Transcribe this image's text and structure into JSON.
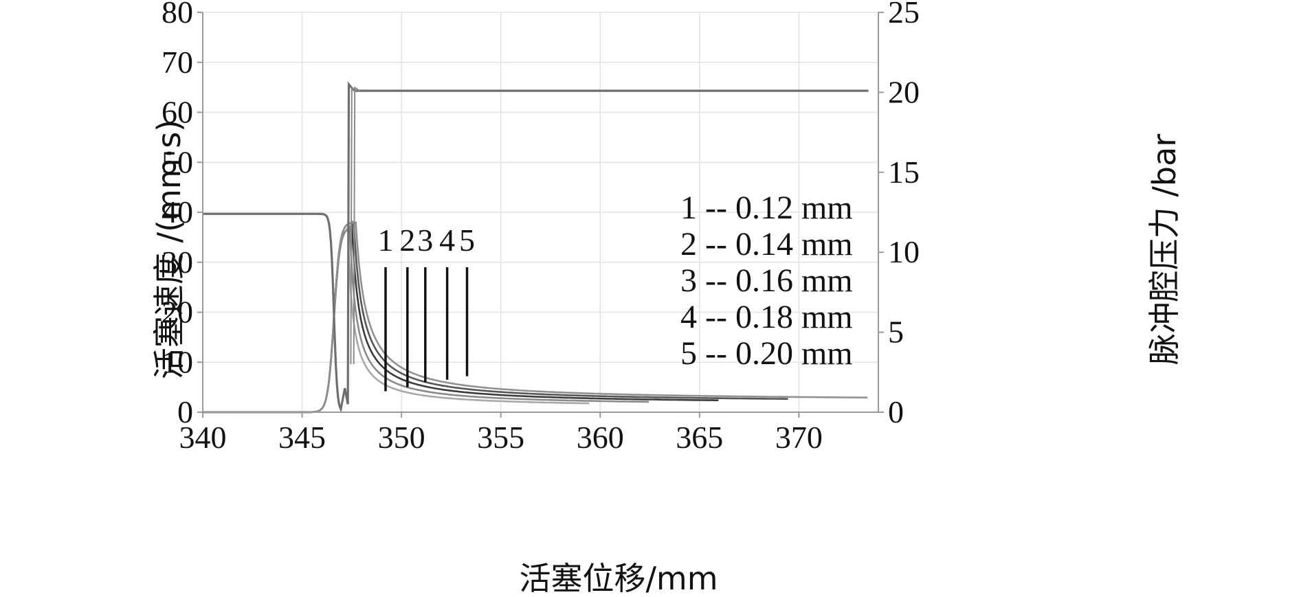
{
  "chart_data": {
    "type": "line",
    "xlabel": "活塞位移/mm",
    "ylabel": "活塞速度 /(mm·s)",
    "y2label": "脉冲腔压力 /bar",
    "xlim": [
      340,
      374
    ],
    "ylim": [
      0,
      80
    ],
    "y2lim": [
      0,
      25
    ],
    "x_ticks": [
      "340",
      "345",
      "350",
      "355",
      "360",
      "365",
      "370"
    ],
    "y_ticks": [
      "0",
      "10",
      "20",
      "30",
      "40",
      "50",
      "60",
      "70",
      "80"
    ],
    "y2_ticks": [
      "0",
      "5",
      "10",
      "15",
      "20",
      "25"
    ],
    "grid": true,
    "legend": [
      {
        "id": "1",
        "text": "1 -- 0.12 mm"
      },
      {
        "id": "2",
        "text": "2 -- 0.14 mm"
      },
      {
        "id": "3",
        "text": "3 -- 0.16 mm"
      },
      {
        "id": "4",
        "text": "4 -- 0.18 mm"
      },
      {
        "id": "5",
        "text": "5 -- 0.20 mm"
      }
    ],
    "legend_placement": "right",
    "markers": [
      {
        "label": "1",
        "x": 349.2,
        "y_top": 29,
        "y_bottom": 4.2
      },
      {
        "label": "2",
        "x": 350.3,
        "y_top": 29,
        "y_bottom": 5.0
      },
      {
        "label": "3",
        "x": 351.2,
        "y_top": 29,
        "y_bottom": 6.0
      },
      {
        "label": "4",
        "x": 352.3,
        "y_top": 29,
        "y_bottom": 6.5
      },
      {
        "label": "5",
        "x": 353.3,
        "y_top": 29,
        "y_bottom": 7.2
      }
    ],
    "velocity_series": [
      {
        "label": "1",
        "peak_x": 347.3,
        "peak": 37,
        "end_x": 359.5,
        "end_value": 1.0,
        "decay": 1.6
      },
      {
        "label": "2",
        "peak_x": 347.4,
        "peak": 37,
        "end_x": 362.5,
        "end_value": 1.3,
        "decay": 2.0
      },
      {
        "label": "3",
        "peak_x": 347.5,
        "peak": 38,
        "end_x": 366.0,
        "end_value": 1.6,
        "decay": 2.4
      },
      {
        "label": "4",
        "peak_x": 347.6,
        "peak": 38,
        "end_x": 369.5,
        "end_value": 1.9,
        "decay": 2.8
      },
      {
        "label": "5",
        "peak_x": 347.7,
        "peak": 38,
        "end_x": 373.5,
        "end_value": 2.2,
        "decay": 3.2
      }
    ],
    "pressure_series": {
      "axis": "y2",
      "initial": 12.4,
      "drop_x": 347.0,
      "min": 0,
      "jump_x": 347.3,
      "overshoot": 20.5,
      "final": 20.1,
      "end_x": 373.5
    },
    "velocity_rise": {
      "start_x": 340,
      "rise_center_x": 346.6
    }
  }
}
